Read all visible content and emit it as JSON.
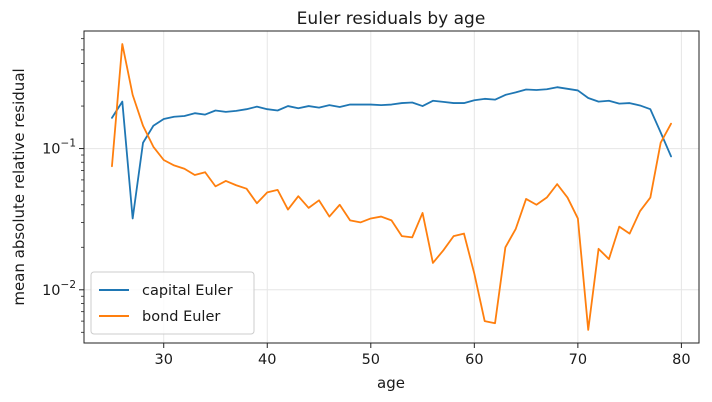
{
  "chart_data": {
    "type": "line",
    "title": "Euler residuals by age",
    "xlabel": "age",
    "ylabel": "mean absolute relative residual",
    "yscale": "log",
    "xlim": [
      22.3,
      81.7
    ],
    "ylim": [
      0.0042,
      0.68
    ],
    "xticks": [
      {
        "value": 30,
        "label": "30"
      },
      {
        "value": 40,
        "label": "40"
      },
      {
        "value": 50,
        "label": "50"
      },
      {
        "value": 60,
        "label": "60"
      },
      {
        "value": 70,
        "label": "70"
      },
      {
        "value": 80,
        "label": "80"
      }
    ],
    "yticks": [
      {
        "value": 0.01,
        "base": "10",
        "exp": "−2"
      },
      {
        "value": 0.1,
        "base": "10",
        "exp": "−1"
      }
    ],
    "grid": true,
    "legend_position": "lower-left",
    "x": [
      25,
      26,
      27,
      28,
      29,
      30,
      31,
      32,
      33,
      34,
      35,
      36,
      37,
      38,
      39,
      40,
      41,
      42,
      43,
      44,
      45,
      46,
      47,
      48,
      49,
      50,
      51,
      52,
      53,
      54,
      55,
      56,
      57,
      58,
      59,
      60,
      61,
      62,
      63,
      64,
      65,
      66,
      67,
      68,
      69,
      70,
      71,
      72,
      73,
      74,
      75,
      76,
      77,
      78,
      79
    ],
    "series": [
      {
        "name": "capital Euler",
        "color": "#1f77b4",
        "values": [
          0.165,
          0.215,
          0.032,
          0.11,
          0.145,
          0.162,
          0.168,
          0.17,
          0.178,
          0.174,
          0.186,
          0.182,
          0.185,
          0.19,
          0.198,
          0.19,
          0.186,
          0.2,
          0.193,
          0.2,
          0.195,
          0.203,
          0.197,
          0.205,
          0.205,
          0.205,
          0.203,
          0.205,
          0.21,
          0.212,
          0.2,
          0.218,
          0.214,
          0.21,
          0.21,
          0.22,
          0.225,
          0.222,
          0.24,
          0.25,
          0.262,
          0.26,
          0.263,
          0.272,
          0.265,
          0.258,
          0.228,
          0.215,
          0.218,
          0.208,
          0.21,
          0.202,
          0.19,
          0.13,
          0.088
        ]
      },
      {
        "name": "bond Euler",
        "color": "#ff7f0e",
        "values": [
          0.075,
          0.55,
          0.24,
          0.145,
          0.103,
          0.083,
          0.076,
          0.072,
          0.065,
          0.068,
          0.054,
          0.059,
          0.055,
          0.052,
          0.041,
          0.049,
          0.051,
          0.037,
          0.046,
          0.038,
          0.043,
          0.033,
          0.04,
          0.031,
          0.03,
          0.032,
          0.033,
          0.031,
          0.024,
          0.0235,
          0.035,
          0.0155,
          0.019,
          0.024,
          0.025,
          0.013,
          0.006,
          0.0058,
          0.02,
          0.027,
          0.044,
          0.04,
          0.045,
          0.056,
          0.045,
          0.032,
          0.0052,
          0.0195,
          0.0165,
          0.028,
          0.025,
          0.036,
          0.045,
          0.11,
          0.15
        ]
      }
    ]
  }
}
